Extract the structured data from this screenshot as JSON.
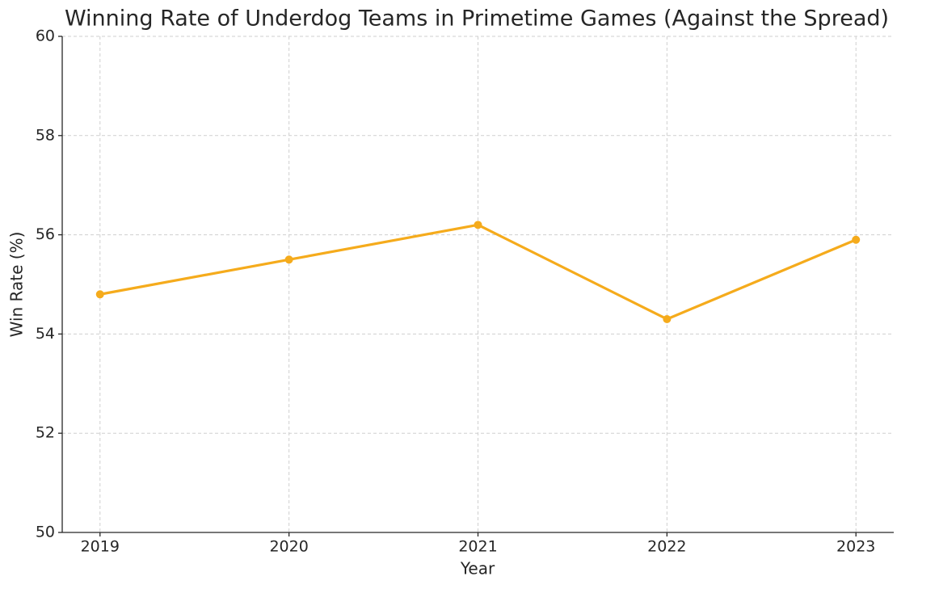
{
  "chart_data": {
    "type": "line",
    "title": "Winning Rate of Underdog Teams in Primetime Games (Against the Spread)",
    "x_label": "Year",
    "y_label": "Win Rate (%)",
    "x": [
      2019,
      2020,
      2021,
      2022,
      2023
    ],
    "series": [
      {
        "name": "Win Rate",
        "color": "#f5ab1c",
        "values": [
          54.8,
          55.5,
          56.2,
          54.3,
          55.9
        ]
      }
    ],
    "xlim": [
      2018.8,
      2023.2
    ],
    "xticks": [
      2019,
      2020,
      2021,
      2022,
      2023
    ],
    "ylim": [
      50,
      60
    ],
    "yticks": [
      50,
      52,
      54,
      56,
      58,
      60
    ],
    "grid": true
  }
}
